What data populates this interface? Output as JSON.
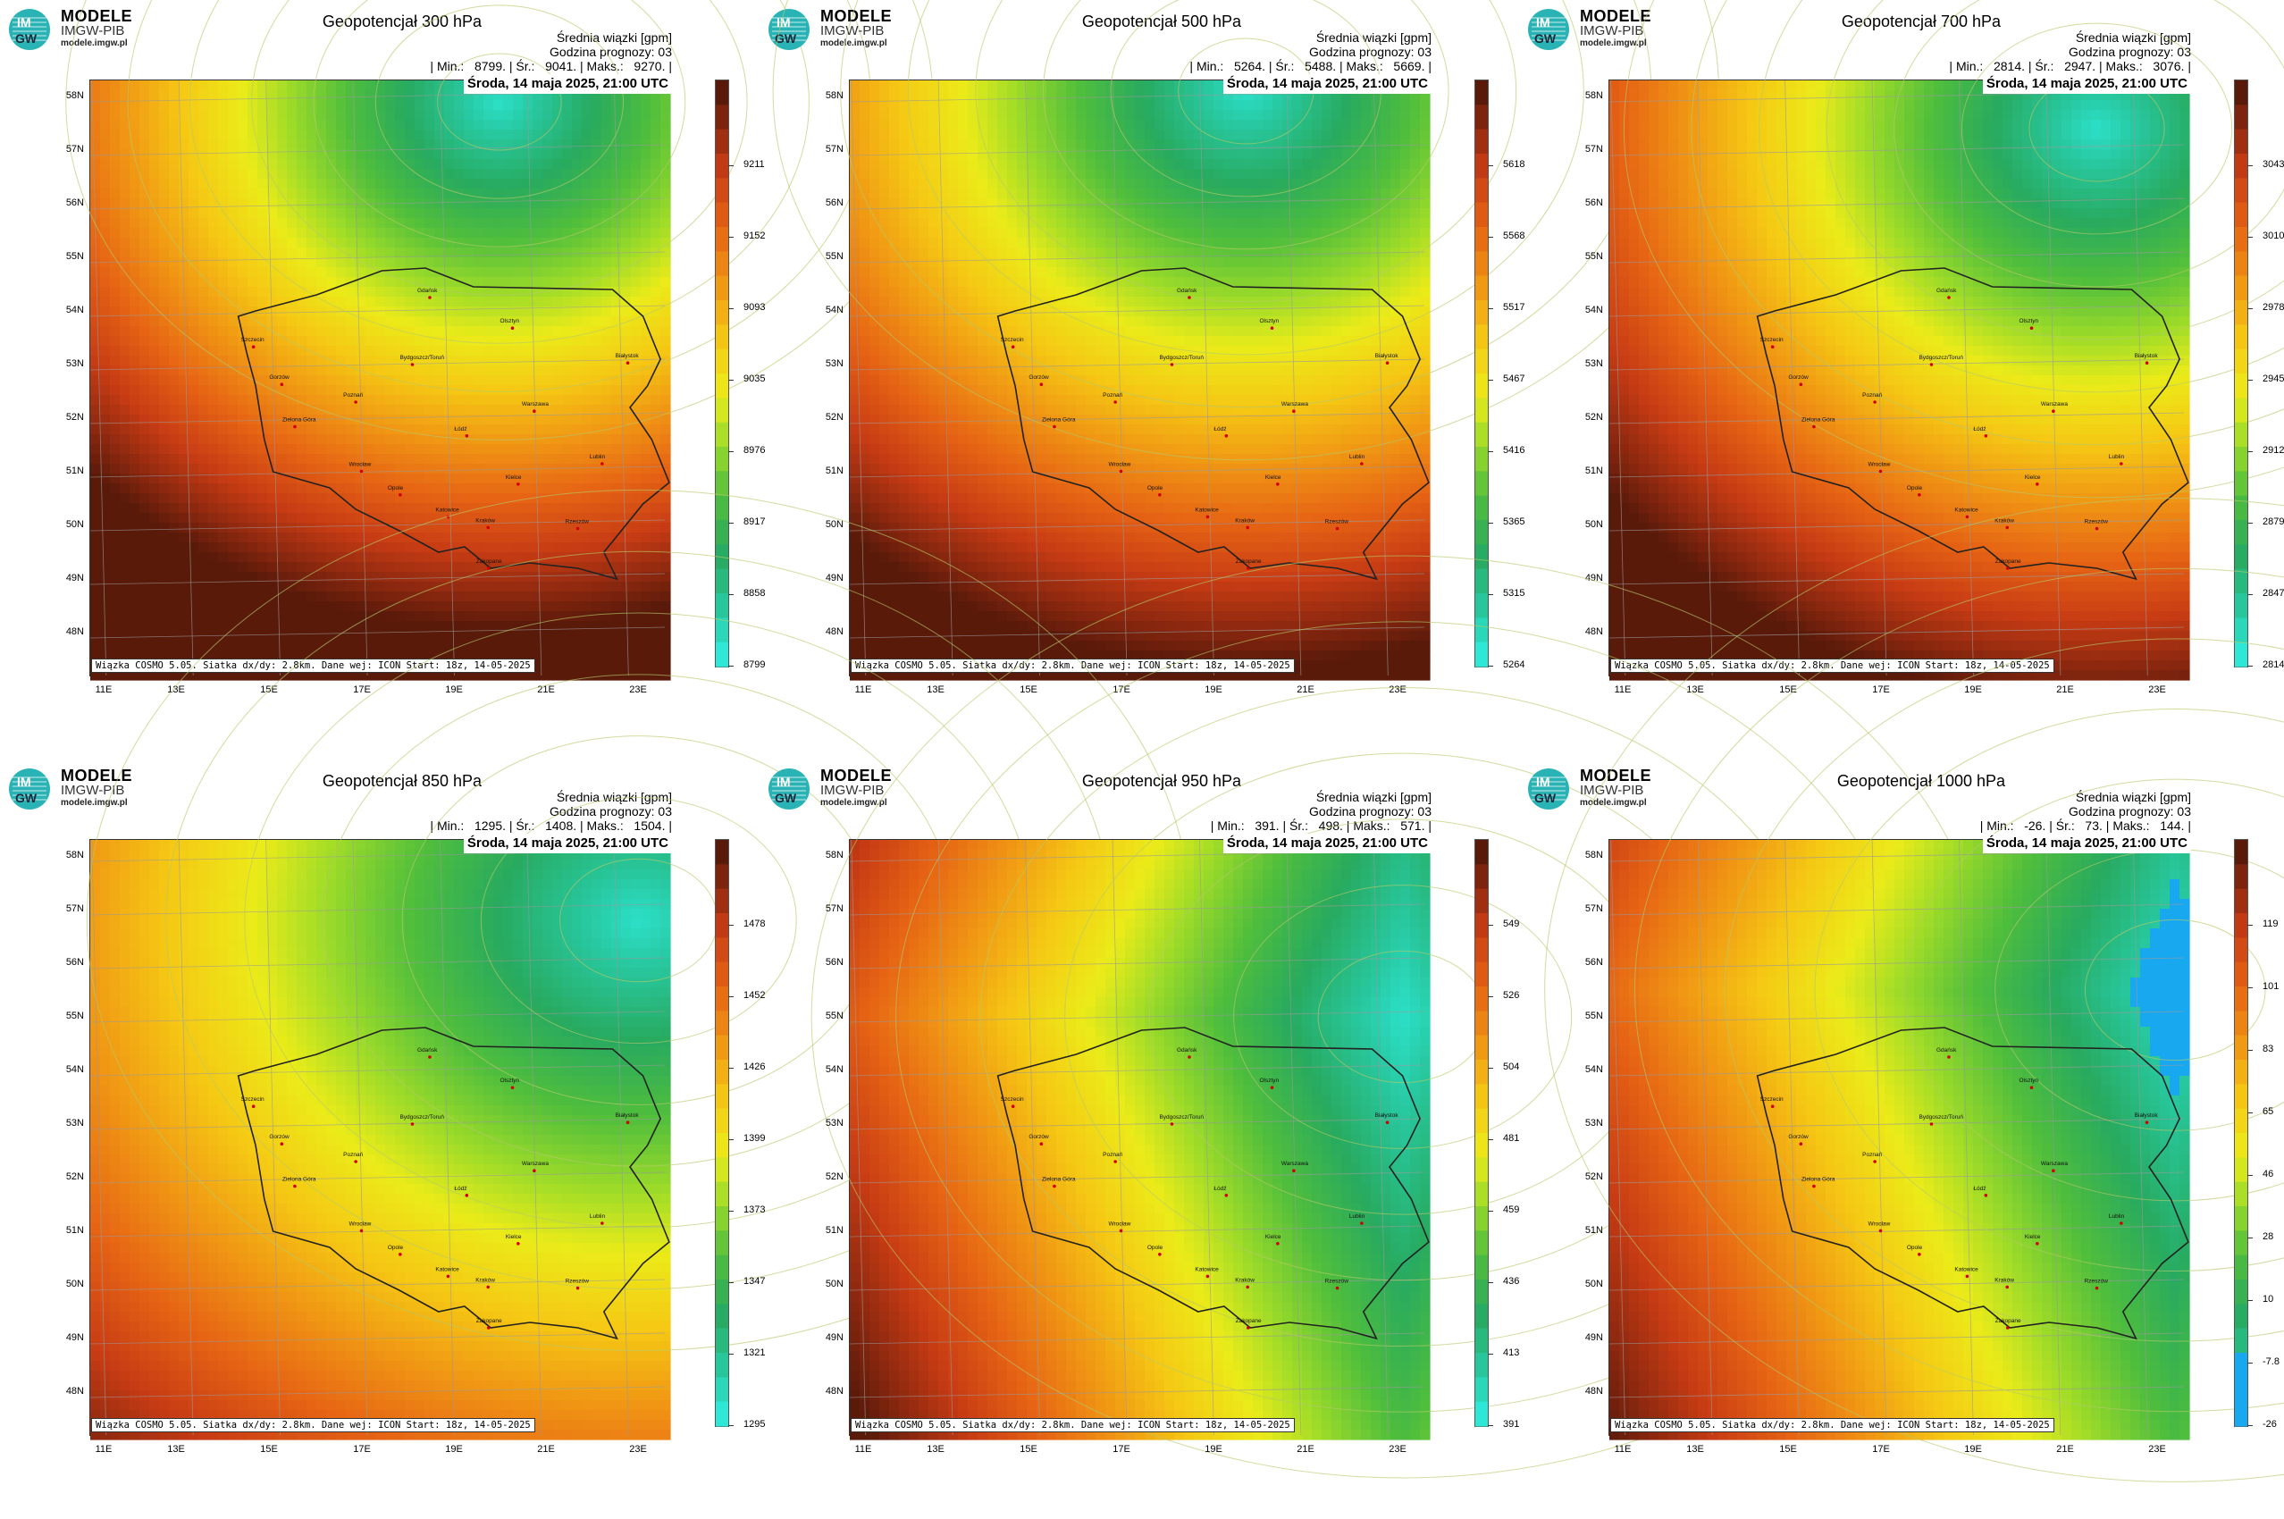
{
  "logo": {
    "name": "MODELE",
    "org": "IMGW-PIB",
    "url": "modele.imgw.pl",
    "badge_top": "IM",
    "badge_bottom": "GW"
  },
  "footnote": "Wiązka COSMO 5.05. Siatka dx/dy: 2.8km. Dane wej: ICON Start: 18z, 14-05-2025",
  "latitudes": [
    "58N",
    "57N",
    "56N",
    "55N",
    "54N",
    "53N",
    "52N",
    "51N",
    "50N",
    "49N",
    "48N"
  ],
  "longitudes": [
    "11E",
    "13E",
    "15E",
    "17E",
    "19E",
    "21E",
    "23E"
  ],
  "cities": [
    "Gdańsk",
    "Olsztyn",
    "Białystok",
    "Szczecin",
    "Bydgoszcz/Toruń",
    "Gorzów",
    "Poznań",
    "Warszawa",
    "Zielona Góra",
    "Łódź",
    "Lublin",
    "Wrocław",
    "Kielce",
    "Opole",
    "Rzeszów",
    "Katowice",
    "Kraków",
    "Zakopane"
  ],
  "colors": {
    "low": "#2ee8d6",
    "mid": "#f0e61a",
    "high": "#5a1a0a",
    "contour": "#b5c96a",
    "accent_blue": "#18a8f0"
  },
  "panels": [
    {
      "title": "Geopotencjał 300 hPa",
      "unit_line": "Średnia wiązki [gpm]",
      "forecast_line": "Godzina prognozy: 03",
      "stats_line": "| Min.:   8799. | Śr.:   9041. | Maks.:   9270. |",
      "date": "Środa, 14 maja 2025, 21:00 UTC",
      "colorbar_labels": [
        "9211",
        "9152",
        "9093",
        "9035",
        "8976",
        "8917",
        "8858",
        "8799"
      ],
      "field": {
        "low_lon": 20.2,
        "low_lat": 57.9,
        "scale": 0.55,
        "shape": "cyclone"
      }
    },
    {
      "title": "Geopotencjał 500 hPa",
      "unit_line": "Średnia wiązki [gpm]",
      "forecast_line": "Godzina prognozy: 03",
      "stats_line": "| Min.:   5264. | Śr.:   5488. | Maks.:   5669. |",
      "date": "Środa, 14 maja 2025, 21:00 UTC",
      "colorbar_labels": [
        "5618",
        "5568",
        "5517",
        "5467",
        "5416",
        "5365",
        "5315",
        "5264"
      ],
      "field": {
        "low_lon": 19.9,
        "low_lat": 58.1,
        "scale": 0.6,
        "shape": "cyclone"
      }
    },
    {
      "title": "Geopotencjał 700 hPa",
      "unit_line": "Średnia wiązki [gpm]",
      "forecast_line": "Godzina prognozy: 03",
      "stats_line": "| Min.:   2814. | Śr.:   2947. | Maks.:   3076. |",
      "date": "Środa, 14 maja 2025, 21:00 UTC",
      "colorbar_labels": [
        "3043",
        "3010",
        "2978",
        "2945",
        "2912",
        "2879",
        "2847",
        "2814"
      ],
      "field": {
        "low_lon": 22.0,
        "low_lat": 57.4,
        "scale": 0.6,
        "shape": "cyclone"
      }
    },
    {
      "title": "Geopotencjał 850 hPa",
      "unit_line": "Średnia wiązki [gpm]",
      "forecast_line": "Godzina prognozy: 03",
      "stats_line": "| Min.:   1295. | Śr.:   1408. | Maks.:   1504. |",
      "date": "Środa, 14 maja 2025, 21:00 UTC",
      "colorbar_labels": [
        "1478",
        "1452",
        "1426",
        "1399",
        "1373",
        "1347",
        "1321",
        "1295"
      ],
      "field": {
        "low_lon": 23.4,
        "low_lat": 56.8,
        "scale": 0.7,
        "shape": "ne"
      }
    },
    {
      "title": "Geopotencjał 950 hPa",
      "unit_line": "Średnia wiązki [gpm]",
      "forecast_line": "Godzina prognozy: 03",
      "stats_line": "| Min.:   391. | Śr.:   498. | Maks.:   571. |",
      "date": "Środa, 14 maja 2025, 21:00 UTC",
      "colorbar_labels": [
        "549",
        "526",
        "504",
        "481",
        "459",
        "436",
        "413",
        "391"
      ],
      "field": {
        "low_lon": 23.5,
        "low_lat": 55.0,
        "scale": 0.75,
        "shape": "east"
      }
    },
    {
      "title": "Geopotencjał 1000 hPa",
      "unit_line": "Średnia wiązki [gpm]",
      "forecast_line": "Godzina prognozy: 03",
      "stats_line": "| Min.:   -26. | Śr.:   73. | Maks.:   144. |",
      "date": "Środa, 14 maja 2025, 21:00 UTC",
      "colorbar_labels": [
        "119",
        "101",
        "83",
        "65",
        "46",
        "28",
        "10",
        "-7.8",
        "-26"
      ],
      "field": {
        "low_lon": 23.8,
        "low_lat": 55.5,
        "scale": 0.8,
        "shape": "east"
      }
    }
  ]
}
